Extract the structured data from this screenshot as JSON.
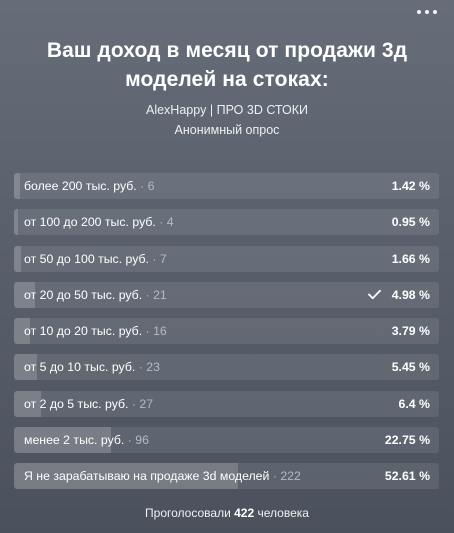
{
  "poll": {
    "title": "Ваш доход в месяц от продажи 3д моделей на стоках:",
    "author": "AlexHappy | ПРО 3D СТОКИ",
    "kind": "Анонимный опрос",
    "options": [
      {
        "label": "более 200 тыс. руб.",
        "count_text": " · 6",
        "percent": "1.42 %",
        "fraction": 0.0142,
        "selected": false
      },
      {
        "label": "от 100 до 200 тыс. руб.",
        "count_text": " · 4",
        "percent": "0.95 %",
        "fraction": 0.0095,
        "selected": false
      },
      {
        "label": "от 50 до 100 тыс. руб.",
        "count_text": " · 7",
        "percent": "1.66 %",
        "fraction": 0.0166,
        "selected": false
      },
      {
        "label": "от 20 до 50 тыс. руб.",
        "count_text": " · 21",
        "percent": "4.98 %",
        "fraction": 0.0498,
        "selected": true
      },
      {
        "label": "от 10 до 20 тыс. руб.",
        "count_text": " · 16",
        "percent": "3.79 %",
        "fraction": 0.0379,
        "selected": false
      },
      {
        "label": "от 5 до 10 тыс. руб.",
        "count_text": " · 23",
        "percent": "5.45 %",
        "fraction": 0.0545,
        "selected": false
      },
      {
        "label": "от 2 до 5 тыс. руб.",
        "count_text": " · 27",
        "percent": "6.4 %",
        "fraction": 0.064,
        "selected": false
      },
      {
        "label": "менее 2 тыс. руб.",
        "count_text": " · 96",
        "percent": "22.75 %",
        "fraction": 0.2275,
        "selected": false
      },
      {
        "label": "Я не зарабатываю на продаже 3d моделей",
        "count_text": " · 222",
        "percent": "52.61 %",
        "fraction": 0.5261,
        "selected": false
      }
    ],
    "footer": {
      "prefix": "Проголосовали ",
      "count": "422",
      "suffix": " человека"
    }
  },
  "icons": {
    "menu": "more-horizontal-icon",
    "selected": "checkmark-icon"
  },
  "colors": {
    "background_top": "#666d78",
    "background_bottom": "#4b515c",
    "text": "#ffffff"
  }
}
